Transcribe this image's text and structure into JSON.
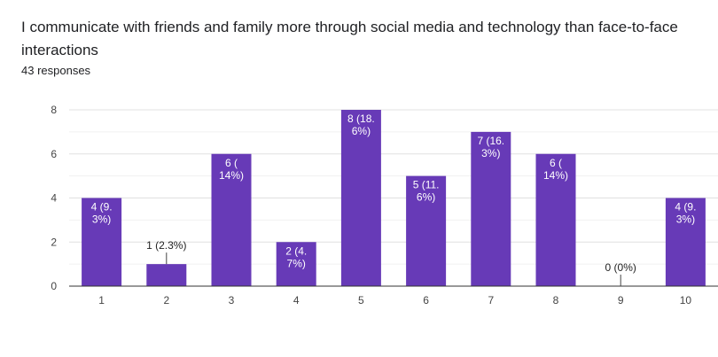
{
  "header": {
    "title": "I communicate with friends and family more through social media and technology than face-to-face interactions",
    "responses": "43 responses"
  },
  "chart_data": {
    "type": "bar",
    "categories": [
      "1",
      "2",
      "3",
      "4",
      "5",
      "6",
      "7",
      "8",
      "9",
      "10"
    ],
    "values": [
      4,
      1,
      6,
      2,
      8,
      5,
      7,
      6,
      0,
      4
    ],
    "data_labels": [
      [
        "4 (9.",
        "3%)"
      ],
      [
        "1 (2.3%)"
      ],
      [
        "6 (",
        "14%)"
      ],
      [
        "2 (4.",
        "7%)"
      ],
      [
        "8 (18.",
        "6%)"
      ],
      [
        "5 (11.",
        "6%)"
      ],
      [
        "7 (16.",
        "3%)"
      ],
      [
        "6 (",
        "14%)"
      ],
      [
        "0 (0%)"
      ],
      [
        "4 (9.",
        "3%)"
      ]
    ],
    "yticks": [
      "0",
      "2",
      "4",
      "6",
      "8"
    ],
    "ylim": [
      0,
      8
    ],
    "grid": true,
    "bar_color": "#673ab7",
    "title": "I communicate with friends and family more through social media and technology than face-to-face interactions",
    "xlabel": "",
    "ylabel": ""
  }
}
